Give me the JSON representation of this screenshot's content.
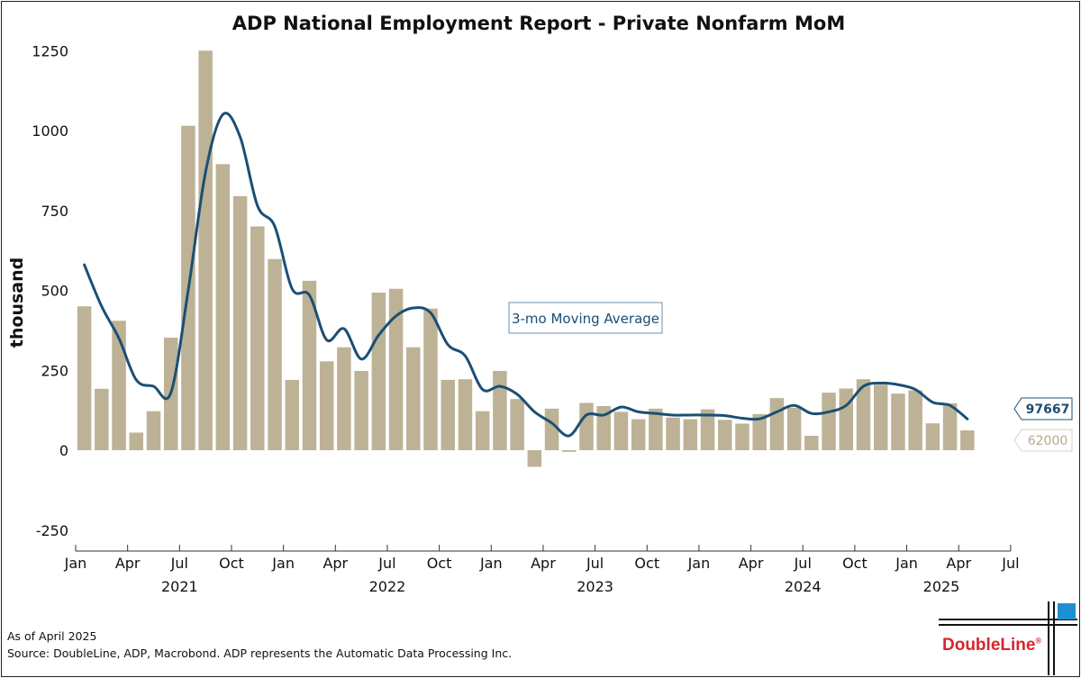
{
  "title": "ADP National Employment Report - Private Nonfarm MoM",
  "colors": {
    "bar": "#bdb296",
    "line": "#1b4f74",
    "logo_red": "#d8262b",
    "logo_blue": "#1e8fd6"
  },
  "chart_data": {
    "type": "bar",
    "title": "ADP National Employment Report - Private Nonfarm MoM",
    "ylabel": "thousand",
    "xlabel": "",
    "ylim": [
      -250,
      1250
    ],
    "yticks": [
      -250,
      0,
      250,
      500,
      750,
      1000,
      1250
    ],
    "xtick_labels": [
      "Jan",
      "Apr",
      "Jul",
      "Oct",
      "Jan",
      "Apr",
      "Jul",
      "Oct",
      "Jan",
      "Apr",
      "Jul",
      "Oct",
      "Jan",
      "Apr",
      "Jul",
      "Oct",
      "Jan",
      "Apr",
      "Jul"
    ],
    "year_labels": [
      "2021",
      "2022",
      "2023",
      "2024",
      "2025"
    ],
    "categories": [
      "2021-01",
      "2021-02",
      "2021-03",
      "2021-04",
      "2021-05",
      "2021-06",
      "2021-07",
      "2021-08",
      "2021-09",
      "2021-10",
      "2021-11",
      "2021-12",
      "2022-01",
      "2022-02",
      "2022-03",
      "2022-04",
      "2022-05",
      "2022-06",
      "2022-07",
      "2022-08",
      "2022-09",
      "2022-10",
      "2022-11",
      "2022-12",
      "2023-01",
      "2023-02",
      "2023-03",
      "2023-04",
      "2023-05",
      "2023-06",
      "2023-07",
      "2023-08",
      "2023-09",
      "2023-10",
      "2023-11",
      "2023-12",
      "2024-01",
      "2024-02",
      "2024-03",
      "2024-04",
      "2024-05",
      "2024-06",
      "2024-07",
      "2024-08",
      "2024-09",
      "2024-10",
      "2024-11",
      "2024-12",
      "2025-01",
      "2025-02",
      "2025-03",
      "2025-04"
    ],
    "series": [
      {
        "name": "Private Nonfarm MoM",
        "kind": "bar",
        "values": [
          450,
          192,
          405,
          55,
          122,
          352,
          1015,
          1250,
          895,
          795,
          700,
          598,
          220,
          530,
          278,
          322,
          248,
          493,
          505,
          322,
          443,
          220,
          222,
          122,
          248,
          160,
          -52,
          130,
          -5,
          148,
          138,
          120,
          97,
          130,
          102,
          97,
          128,
          95,
          83,
          113,
          163,
          133,
          45,
          180,
          193,
          222,
          205,
          177,
          187,
          84,
          147,
          62
        ]
      },
      {
        "name": "3-mo Moving Average",
        "kind": "line",
        "values": [
          580,
          450,
          350,
          220,
          200,
          180,
          500,
          870,
          1050,
          980,
          765,
          700,
          505,
          485,
          345,
          380,
          285,
          360,
          420,
          445,
          430,
          330,
          295,
          190,
          200,
          175,
          120,
          85,
          45,
          110,
          110,
          135,
          120,
          115,
          110,
          110,
          110,
          108,
          100,
          98,
          120,
          140,
          115,
          120,
          140,
          200,
          210,
          205,
          190,
          150,
          140,
          97.667
        ]
      }
    ],
    "annotation": "3-mo Moving Average",
    "last_values": {
      "line": "97667",
      "bar": "62000"
    }
  },
  "footer": {
    "as_of": "As of April 2025",
    "source": "Source: DoubleLine, ADP, Macrobond. ADP represents the Automatic Data Processing Inc."
  },
  "logo": {
    "text": "DoubleLine",
    "mark": "®"
  }
}
